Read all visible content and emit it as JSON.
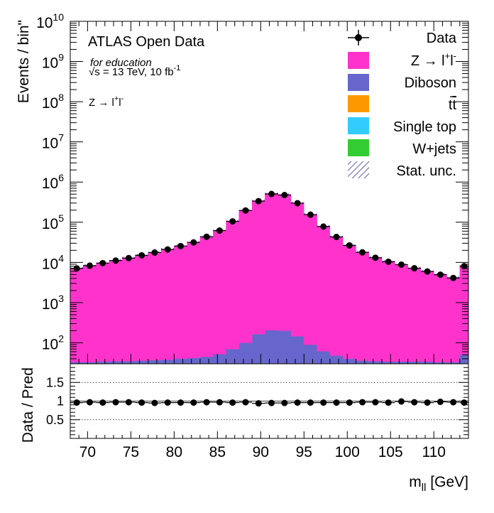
{
  "chart_data": {
    "type": "bar",
    "stacked": true,
    "histogram": true,
    "annotations": {
      "experiment": "ATLAS Open Data",
      "tag": "for education",
      "energy": "√s = 13 TeV, 10 fb",
      "energy_sup": "-1",
      "channel": "Z → l",
      "channel_sup": "+",
      "channel_tail": "l",
      "channel_tail_sup": "-"
    },
    "x": {
      "label": "m",
      "label_sub": "ll",
      "label_unit": " [GeV]",
      "range": [
        68,
        114
      ],
      "ticks": [
        {
          "value": 70,
          "label": "70"
        },
        {
          "value": 75,
          "label": "75"
        },
        {
          "value": 80,
          "label": "80"
        },
        {
          "value": 85,
          "label": "85"
        },
        {
          "value": 90,
          "label": "90"
        },
        {
          "value": 95,
          "label": "95"
        },
        {
          "value": 100,
          "label": "100"
        },
        {
          "value": 105,
          "label": "105"
        },
        {
          "value": 110,
          "label": "110"
        }
      ]
    },
    "y": {
      "label": "Events / bin\"",
      "log": true,
      "range": [
        30,
        10000000000
      ],
      "ticks": [
        {
          "value": 100,
          "base": "10",
          "exp": "2"
        },
        {
          "value": 1000,
          "base": "10",
          "exp": "3"
        },
        {
          "value": 10000,
          "base": "10",
          "exp": "4"
        },
        {
          "value": 100000,
          "base": "10",
          "exp": "5"
        },
        {
          "value": 1000000,
          "base": "10",
          "exp": "6"
        },
        {
          "value": 10000000,
          "base": "10",
          "exp": "7"
        },
        {
          "value": 100000000,
          "base": "10",
          "exp": "8"
        },
        {
          "value": 1000000000,
          "base": "10",
          "exp": "9"
        },
        {
          "value": 10000000000,
          "base": "10",
          "exp": "10"
        }
      ]
    },
    "ratio": {
      "label": "Data / Pred",
      "range": [
        0,
        2
      ],
      "ticks": [
        {
          "value": 0.5,
          "label": "0.5"
        },
        {
          "value": 1,
          "label": "1"
        },
        {
          "value": 1.5,
          "label": "1.5"
        }
      ],
      "gridlines": [
        0.5,
        1,
        1.5
      ],
      "values": [
        0.96,
        0.97,
        0.96,
        0.97,
        0.97,
        0.96,
        0.95,
        0.96,
        0.96,
        0.96,
        0.97,
        0.97,
        0.96,
        0.97,
        0.94,
        0.95,
        0.95,
        0.96,
        0.96,
        0.96,
        0.96,
        0.96,
        0.97,
        0.97,
        0.96,
        0.99,
        0.97,
        0.96,
        0.98,
        0.97,
        0.96
      ]
    },
    "bin_edges": [
      68.0,
      69.5,
      71.0,
      72.5,
      74.0,
      75.5,
      77.0,
      78.5,
      80.0,
      81.5,
      83.0,
      84.5,
      86.0,
      87.5,
      89.0,
      90.5,
      92.0,
      93.5,
      95.0,
      96.5,
      98.0,
      99.5,
      101.0,
      102.5,
      104.0,
      105.5,
      107.0,
      108.5,
      110.0,
      111.5,
      113.0,
      114.0
    ],
    "series": [
      {
        "name": "Diboson",
        "color": "#6666cc",
        "values": [
          33,
          33,
          34,
          35,
          35,
          36,
          37,
          38,
          40,
          42,
          45,
          52,
          70,
          100,
          165,
          205,
          200,
          145,
          90,
          62,
          48,
          40,
          36,
          35,
          34,
          34,
          34,
          34,
          33,
          33,
          50
        ]
      },
      {
        "name": "Z → l",
        "name_sup": "+",
        "name_tail": "l",
        "name_tail_sup": "-",
        "color": "#ff33cc",
        "values": [
          7200,
          8400,
          9700,
          11300,
          13000,
          15200,
          18000,
          21500,
          26000,
          32000,
          44000,
          63000,
          108000,
          200000,
          345000,
          520000,
          490000,
          305000,
          158000,
          80000,
          44000,
          27000,
          18200,
          13400,
          10700,
          8900,
          7300,
          6100,
          5100,
          4200,
          8300
        ]
      }
    ],
    "data": {
      "name": "Data",
      "values": [
        7100,
        8300,
        9600,
        11100,
        12800,
        15000,
        17600,
        21000,
        25500,
        31500,
        43500,
        62000,
        105000,
        196000,
        335000,
        505000,
        475000,
        298000,
        154000,
        78000,
        43000,
        26500,
        17800,
        13100,
        10400,
        8800,
        7150,
        5950,
        4950,
        4100,
        8050
      ]
    },
    "legend": {
      "position": "top-right",
      "entries": [
        {
          "key": "data",
          "label": "Data"
        },
        {
          "key": "zll",
          "label": "Z → l",
          "sup": "+",
          "tail": "l",
          "tail_sup": "-",
          "color": "#ff33cc"
        },
        {
          "key": "diboson",
          "label": "Diboson",
          "color": "#6666cc"
        },
        {
          "key": "ttbar",
          "label": "t",
          "tail": "t",
          "color": "#ff9900"
        },
        {
          "key": "singletop",
          "label": "Single top",
          "color": "#33ccff"
        },
        {
          "key": "wjets",
          "label": "W+jets",
          "color": "#33cc33"
        },
        {
          "key": "statunc",
          "label": "Stat. unc.",
          "color": "#000099"
        }
      ]
    }
  }
}
